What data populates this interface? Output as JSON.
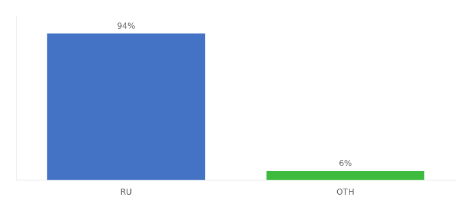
{
  "chart_data": {
    "type": "bar",
    "categories": [
      "RU",
      "OTH"
    ],
    "values": [
      94,
      6
    ],
    "value_labels": [
      "94%",
      "6%"
    ],
    "data_labels": true,
    "colors": [
      "#4472c4",
      "#3dbb3d"
    ],
    "ylim": [
      0,
      105
    ],
    "tick_labels": "x",
    "grid": false
  }
}
